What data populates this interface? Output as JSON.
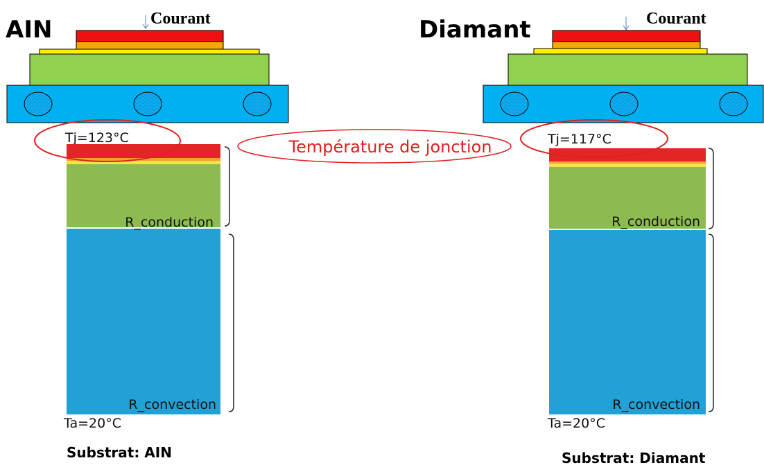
{
  "panels": [
    {
      "title": "AIN",
      "current_label": "Courant",
      "junction_temp": "Tj=123°C",
      "r_conduction": "R_conduction",
      "r_convection": "R_convection",
      "ambient_temp": "Ta=20°C",
      "substrate": "Substrat: AIN"
    },
    {
      "title": "Diamant",
      "current_label": "Courant",
      "junction_temp": "Tj=117°C",
      "r_conduction": "R_conduction",
      "r_convection": "R_convection",
      "ambient_temp": "Ta=20°C",
      "substrate": "Substrat: Diamant"
    }
  ],
  "center_label": "Température de jonction"
}
